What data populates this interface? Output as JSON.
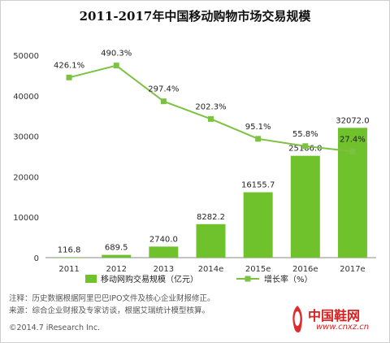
{
  "chart_data": {
    "type": "bar",
    "title": "2011-2017年中国移动购物市场交易规模",
    "categories": [
      "2011",
      "2012",
      "2013",
      "2014e",
      "2015e",
      "2016e",
      "2017e"
    ],
    "series": [
      {
        "name": "移动网购交易规模（亿元）",
        "type": "bar",
        "values": [
          116.8,
          689.5,
          2740.0,
          8282.2,
          16155.7,
          25166.0,
          32072.0
        ],
        "labels": [
          "116.8",
          "689.5",
          "2740.0",
          "8282.2",
          "16155.7",
          "25166.0",
          "32072.0"
        ],
        "color": "#6fc22b"
      },
      {
        "name": "增长率（%）",
        "type": "line",
        "values": [
          426.1,
          490.3,
          297.4,
          202.3,
          95.1,
          55.8,
          27.4
        ],
        "labels": [
          "426.1%",
          "490.3%",
          "297.4%",
          "202.3%",
          "95.1%",
          "55.8%",
          "27.4%"
        ],
        "color": "#7cc242"
      }
    ],
    "yticks": [
      "0",
      "10000",
      "20000",
      "30000",
      "40000",
      "50000"
    ],
    "ylim": [
      0,
      50000
    ],
    "grid": false,
    "legend": "bottom"
  },
  "notes": {
    "line1": "注释：历史数据根据阿里巴巴IPO文件及核心企业财报修正。",
    "line2": "来源：综合企业财报及专家访谈，根据艾瑞统计模型核算。"
  },
  "copyright": "©2014.7 iResearch Inc.",
  "watermark": {
    "name": "中国鞋网",
    "url": "www.cnxz.cn"
  }
}
